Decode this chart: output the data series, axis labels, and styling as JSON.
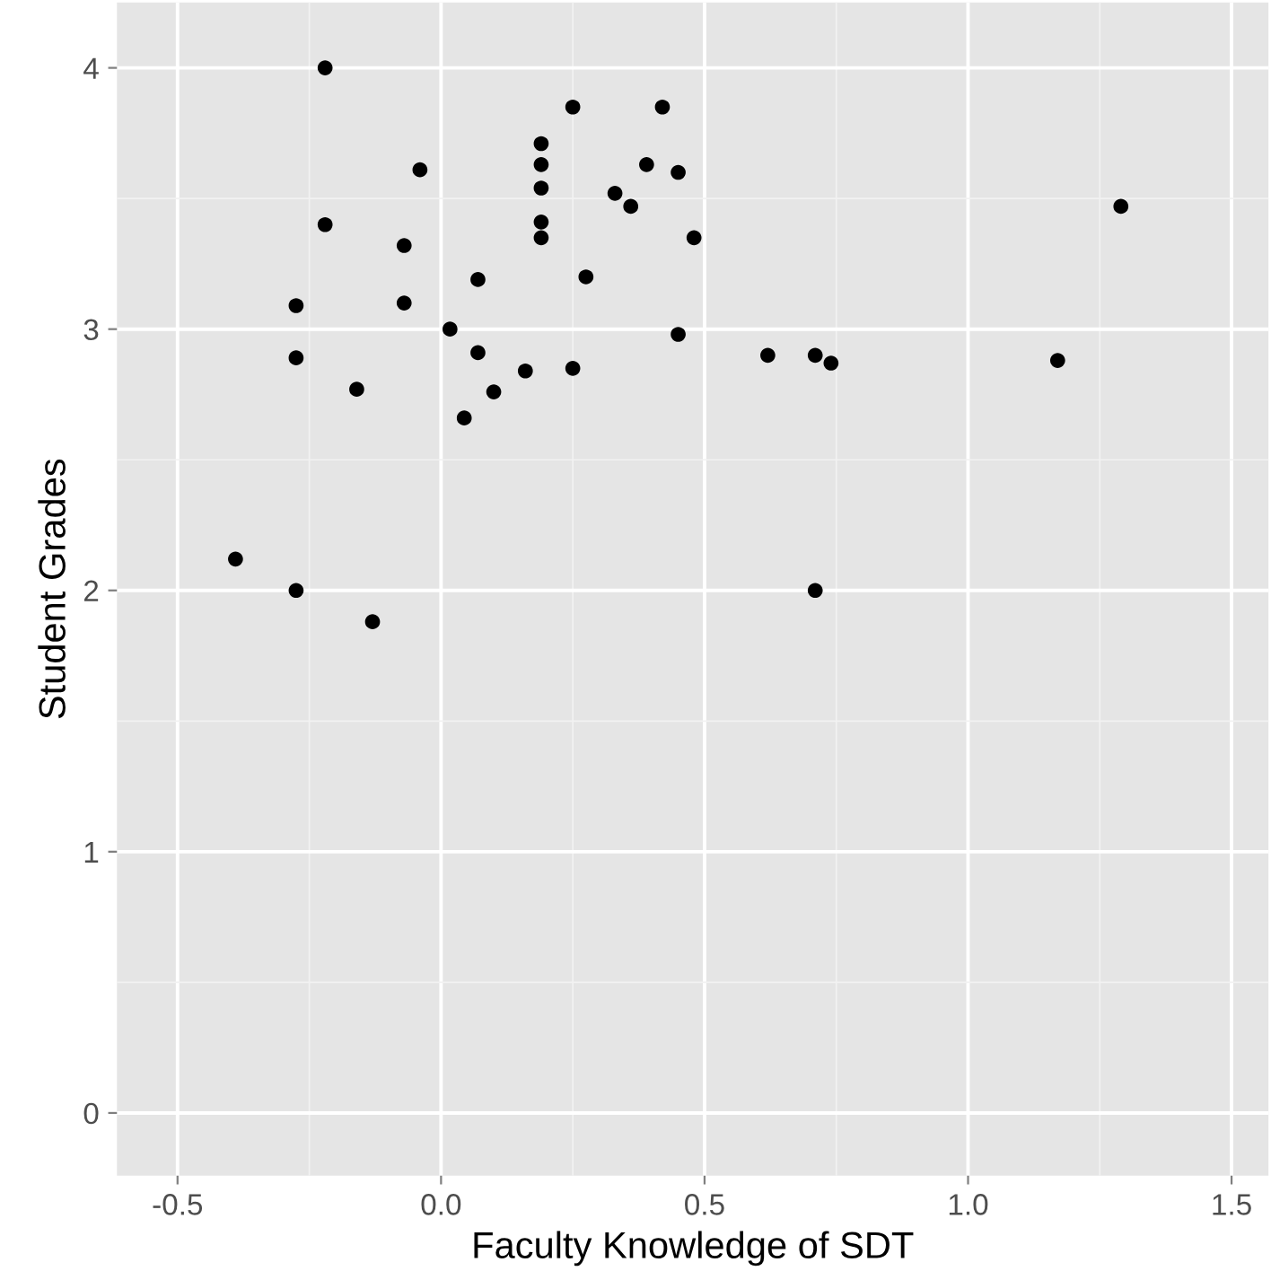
{
  "chart_data": {
    "type": "scatter",
    "xlabel": "Faculty Knowledge of SDT",
    "ylabel": "Student Grades",
    "x": [
      -0.39,
      -0.22,
      -0.22,
      -0.275,
      -0.275,
      -0.275,
      -0.16,
      -0.13,
      -0.07,
      -0.07,
      -0.04,
      0.017,
      0.07,
      0.07,
      0.044,
      0.1,
      0.19,
      0.19,
      0.19,
      0.19,
      0.19,
      0.25,
      0.16,
      0.25,
      0.275,
      0.33,
      0.36,
      0.39,
      0.42,
      0.45,
      0.48,
      0.45,
      0.62,
      0.71,
      0.74,
      0.71,
      1.17,
      1.29
    ],
    "values": [
      2.12,
      4.0,
      3.4,
      3.09,
      2.89,
      2.0,
      2.77,
      1.88,
      3.32,
      3.1,
      3.61,
      3.0,
      3.19,
      2.91,
      2.66,
      2.76,
      3.71,
      3.63,
      3.54,
      3.41,
      3.35,
      3.85,
      2.84,
      2.85,
      3.2,
      3.52,
      3.47,
      3.63,
      3.85,
      3.6,
      3.35,
      2.98,
      2.9,
      2.9,
      2.87,
      2.0,
      2.88,
      3.47
    ],
    "color": "#000000",
    "marker": "circle",
    "grid": true,
    "xlim": [
      -0.615,
      1.57
    ],
    "ylim": [
      -0.24,
      4.25
    ],
    "xticks": [
      -0.5,
      {
        "value": 0,
        "label": "0.0"
      },
      0.5,
      {
        "value": 1,
        "label": "1.0"
      },
      1.5
    ],
    "yticks": [
      0,
      1,
      2,
      3,
      4
    ]
  }
}
